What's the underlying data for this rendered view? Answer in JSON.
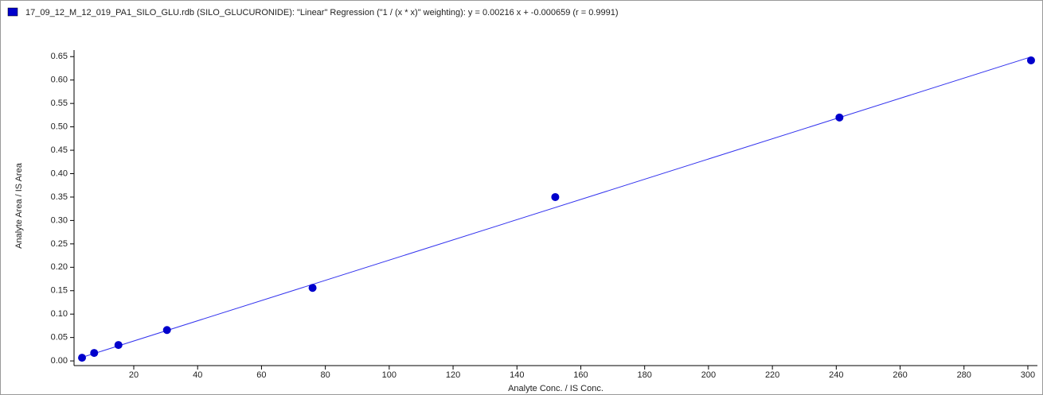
{
  "chart_data": {
    "type": "scatter",
    "xlabel": "Analyte Conc. / IS Conc.",
    "ylabel": "Analyte Area / IS Area",
    "series": [
      {
        "name": "17_09_12_M_12_019_PA1_SILO_GLU.rdb (SILO_GLUCURONIDE): \"Linear\" Regression (\"1 / (x * x)\" weighting): y = 0.00216 x + -0.000659 (r = 0.9991)",
        "color": "#0000cc",
        "x": [
          3.8,
          7.6,
          15.2,
          30.4,
          76,
          152,
          241,
          301
        ],
        "values": [
          0.0068,
          0.017,
          0.034,
          0.066,
          0.156,
          0.35,
          0.52,
          0.642
        ]
      }
    ],
    "fit": {
      "slope": 0.00216,
      "intercept": -0.000659,
      "color": "#3333ee"
    },
    "xlim": [
      1.3,
      303
    ],
    "ylim": [
      -0.01,
      0.664
    ],
    "xticks": [
      20,
      40,
      60,
      80,
      100,
      120,
      140,
      160,
      180,
      200,
      220,
      240,
      260,
      280,
      300
    ],
    "yticks": [
      {
        "value": 0,
        "label": "0.00"
      },
      {
        "value": 0.05,
        "label": "0.05"
      },
      {
        "value": 0.1,
        "label": "0.10"
      },
      {
        "value": 0.15,
        "label": "0.15"
      },
      {
        "value": 0.2,
        "label": "0.20"
      },
      {
        "value": 0.25,
        "label": "0.25"
      },
      {
        "value": 0.3,
        "label": "0.30"
      },
      {
        "value": 0.35,
        "label": "0.35"
      },
      {
        "value": 0.4,
        "label": "0.40"
      },
      {
        "value": 0.45,
        "label": "0.45"
      },
      {
        "value": 0.5,
        "label": "0.50"
      },
      {
        "value": 0.55,
        "label": "0.55"
      },
      {
        "value": 0.6,
        "label": "0.60"
      },
      {
        "value": 0.65,
        "label": "0.65"
      }
    ]
  }
}
